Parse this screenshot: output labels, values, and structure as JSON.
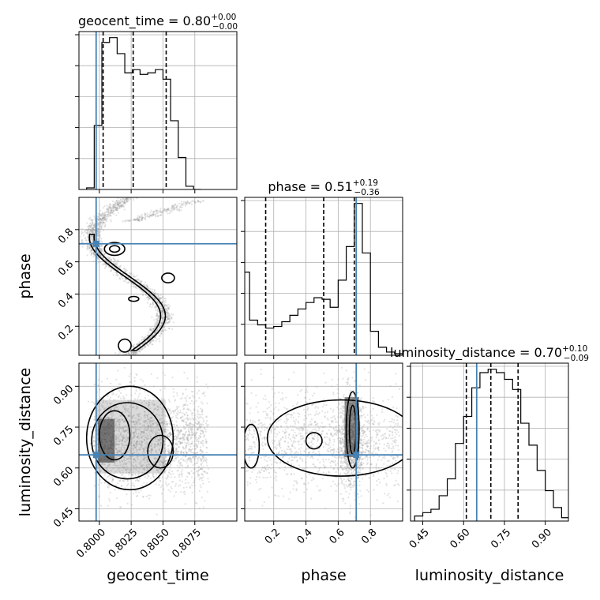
{
  "chart_data": {
    "type": "corner",
    "parameters": [
      "geocent_time",
      "phase",
      "luminosity_distance"
    ],
    "axis_labels": [
      "geocent_time",
      "phase",
      "luminosity_distance"
    ],
    "ranges": {
      "geocent_time": [
        0.7984,
        0.8108
      ],
      "phase": [
        0.02,
        1.0
      ],
      "luminosity_distance": [
        0.405,
        0.985
      ]
    },
    "ticks": {
      "geocent_time": {
        "values": [
          0.8,
          0.8025,
          0.805,
          0.8075
        ],
        "labels": [
          "0.8000",
          "0.8025",
          "0.8050",
          "0.8075"
        ]
      },
      "phase": {
        "values": [
          0.2,
          0.4,
          0.6,
          0.8
        ],
        "labels": [
          "0.2",
          "0.4",
          "0.6",
          "0.8"
        ]
      },
      "luminosity_distance": {
        "values": [
          0.45,
          0.6,
          0.75,
          0.9
        ],
        "labels": [
          "0.45",
          "0.60",
          "0.75",
          "0.90"
        ]
      }
    },
    "truths": {
      "geocent_time": 0.79975,
      "phase": 0.712,
      "luminosity_distance": 0.648
    },
    "titles": [
      {
        "param": "geocent_time",
        "name": "geocent_time",
        "median": "0.80",
        "plus": "+0.00",
        "minus": "−0.00"
      },
      {
        "param": "phase",
        "name": "phase",
        "median": "0.51",
        "plus": "+0.19",
        "minus": "−0.36"
      },
      {
        "param": "luminosity_distance",
        "name": "luminosity_distance",
        "median": "0.70",
        "plus": "+0.10",
        "minus": "−0.09"
      }
    ],
    "quantiles": {
      "geocent_time": [
        0.8003,
        0.80266,
        0.80525
      ],
      "phase": [
        0.15,
        0.51,
        0.7
      ],
      "luminosity_distance": [
        0.61,
        0.7,
        0.8
      ]
    },
    "histograms": {
      "geocent_time": {
        "edges": [
          0.799,
          0.7996,
          0.8002,
          0.8008,
          0.8014,
          0.802,
          0.8026,
          0.8032,
          0.8038,
          0.8044,
          0.805,
          0.8056,
          0.8062,
          0.8068,
          0.8074,
          0.808
        ],
        "counts": [
          0.01,
          0.4,
          0.92,
          0.95,
          0.85,
          0.73,
          0.75,
          0.72,
          0.73,
          0.75,
          0.69,
          0.43,
          0.2,
          0.02,
          0.0
        ]
      },
      "phase": {
        "edges": [
          0.0,
          0.05,
          0.1,
          0.15,
          0.2,
          0.25,
          0.3,
          0.35,
          0.4,
          0.45,
          0.5,
          0.55,
          0.6,
          0.65,
          0.7,
          0.75,
          0.8,
          0.85,
          0.9,
          0.95,
          1.0
        ],
        "counts": [
          0.52,
          0.22,
          0.19,
          0.17,
          0.18,
          0.21,
          0.25,
          0.29,
          0.33,
          0.36,
          0.35,
          0.3,
          0.47,
          0.68,
          0.95,
          0.64,
          0.15,
          0.05,
          0.02,
          0.01
        ]
      },
      "luminosity_distance": {
        "edges": [
          0.42,
          0.45,
          0.48,
          0.51,
          0.54,
          0.57,
          0.6,
          0.63,
          0.66,
          0.69,
          0.72,
          0.75,
          0.78,
          0.81,
          0.84,
          0.87,
          0.9,
          0.93,
          0.96,
          0.99
        ],
        "counts": [
          0.03,
          0.05,
          0.07,
          0.15,
          0.25,
          0.46,
          0.62,
          0.79,
          0.88,
          0.9,
          0.88,
          0.84,
          0.78,
          0.58,
          0.45,
          0.3,
          0.18,
          0.08,
          0.02
        ]
      }
    },
    "grid": true
  }
}
